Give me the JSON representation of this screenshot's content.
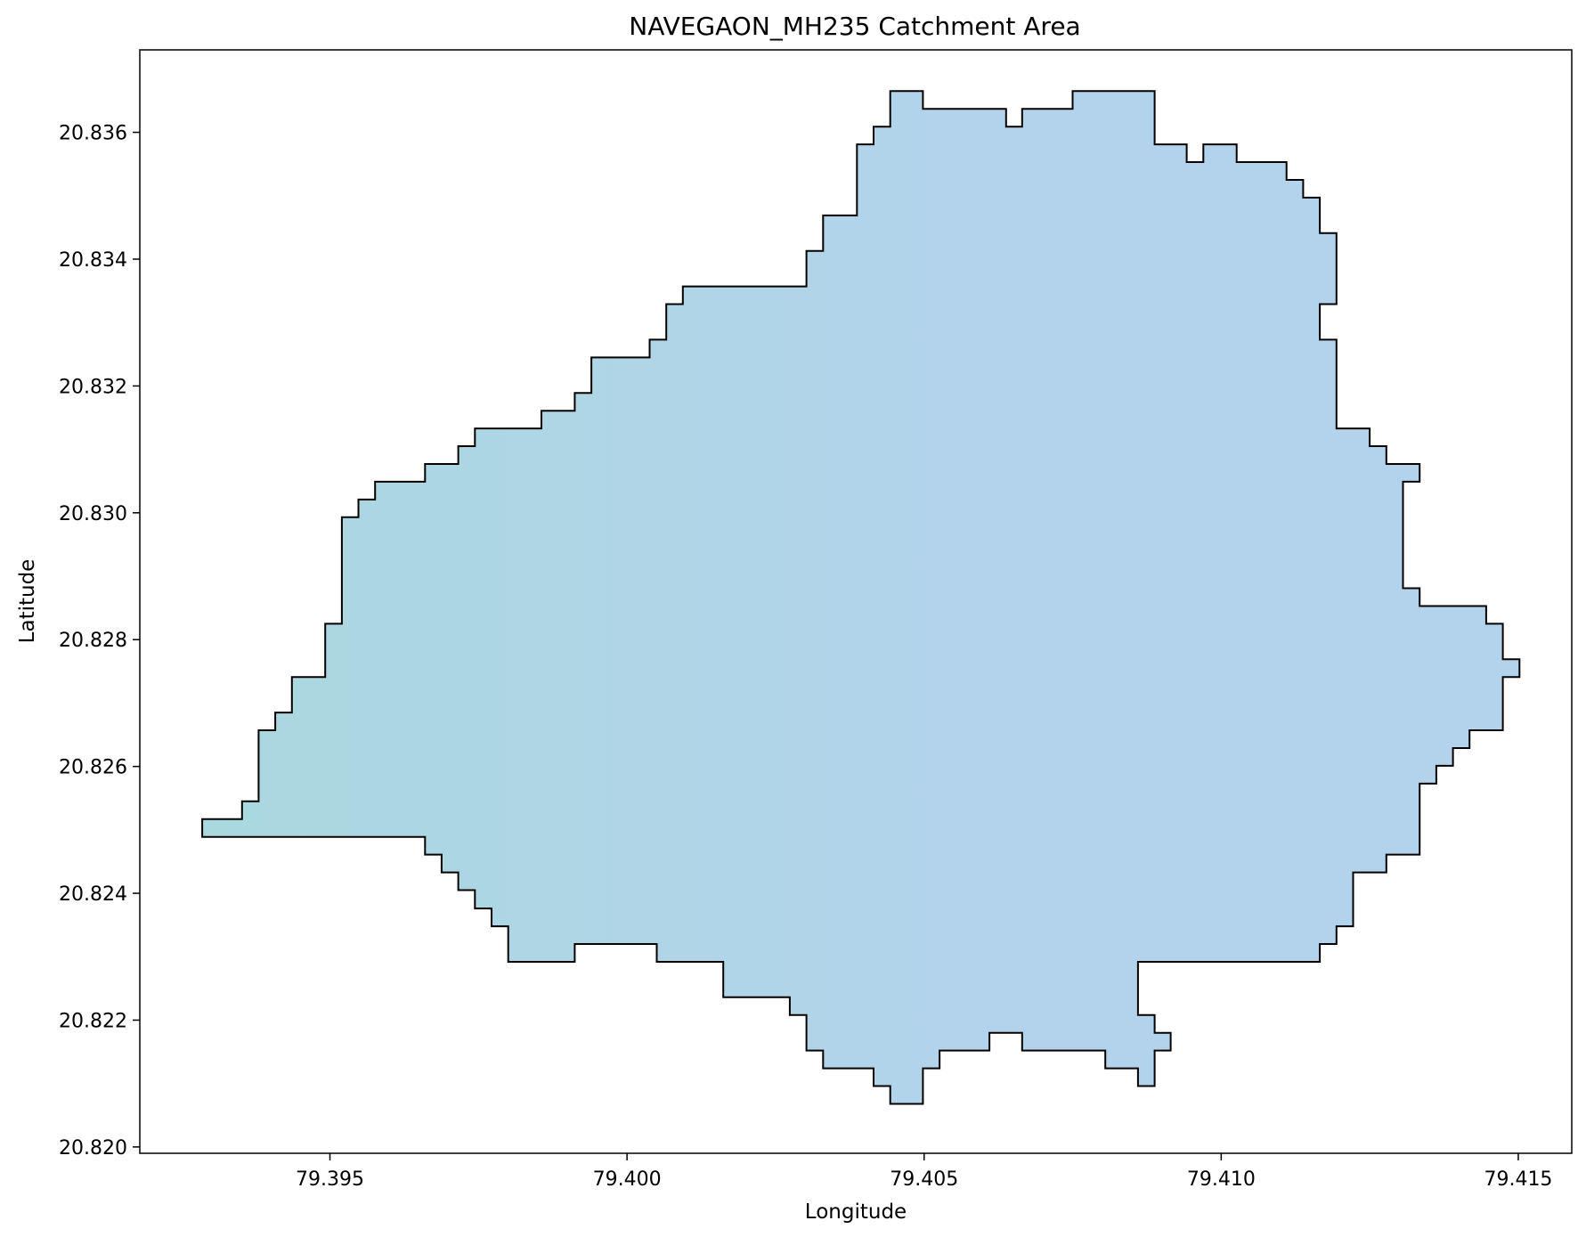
{
  "chart_data": {
    "type": "area",
    "title": "NAVEGAON_MH235 Catchment Area",
    "xlabel": "Longitude",
    "ylabel": "Latitude",
    "xlim": [
      79.3918,
      79.4159
    ],
    "ylim": [
      20.8199,
      20.8373
    ],
    "x_ticks": [
      "79.395",
      "79.400",
      "79.405",
      "79.410",
      "79.415"
    ],
    "x_tick_values": [
      79.395,
      79.4,
      79.405,
      79.41,
      79.415
    ],
    "y_ticks": [
      "20.820",
      "20.822",
      "20.824",
      "20.826",
      "20.828",
      "20.830",
      "20.832",
      "20.834",
      "20.836"
    ],
    "y_tick_values": [
      20.82,
      20.822,
      20.824,
      20.826,
      20.828,
      20.83,
      20.832,
      20.834,
      20.836
    ],
    "grid": false,
    "legend": "none",
    "fill_color_left": "#aad8df",
    "fill_color_right": "#b3d3ec",
    "edge_color": "#000000",
    "boundary": [
      [
        79.39285,
        20.82489
      ],
      [
        79.3966,
        20.82489
      ],
      [
        79.3966,
        20.82461
      ],
      [
        79.39688,
        20.82461
      ],
      [
        79.39688,
        20.82433
      ],
      [
        79.39716,
        20.82433
      ],
      [
        79.39716,
        20.82405
      ],
      [
        79.39744,
        20.82405
      ],
      [
        79.39744,
        20.82376
      ],
      [
        79.39772,
        20.82376
      ],
      [
        79.39772,
        20.82348
      ],
      [
        79.398,
        20.82348
      ],
      [
        79.398,
        20.82292
      ],
      [
        79.39912,
        20.82292
      ],
      [
        79.39912,
        20.8232
      ],
      [
        79.4005,
        20.8232
      ],
      [
        79.4005,
        20.82292
      ],
      [
        79.40162,
        20.82292
      ],
      [
        79.40162,
        20.82236
      ],
      [
        79.40274,
        20.82236
      ],
      [
        79.40274,
        20.82208
      ],
      [
        79.40302,
        20.82208
      ],
      [
        79.40302,
        20.82152
      ],
      [
        79.4033,
        20.82152
      ],
      [
        79.4033,
        20.82124
      ],
      [
        79.40415,
        20.82124
      ],
      [
        79.40415,
        20.82096
      ],
      [
        79.40443,
        20.82096
      ],
      [
        79.40443,
        20.82068
      ],
      [
        79.40498,
        20.82068
      ],
      [
        79.40498,
        20.82124
      ],
      [
        79.40526,
        20.82124
      ],
      [
        79.40526,
        20.82152
      ],
      [
        79.4061,
        20.82152
      ],
      [
        79.4061,
        20.8218
      ],
      [
        79.40665,
        20.8218
      ],
      [
        79.40665,
        20.82152
      ],
      [
        79.40805,
        20.82152
      ],
      [
        79.40805,
        20.82124
      ],
      [
        79.4086,
        20.82124
      ],
      [
        79.4086,
        20.82096
      ],
      [
        79.40888,
        20.82096
      ],
      [
        79.40888,
        20.82152
      ],
      [
        79.40915,
        20.82152
      ],
      [
        79.40915,
        20.8218
      ],
      [
        79.40888,
        20.8218
      ],
      [
        79.40888,
        20.82208
      ],
      [
        79.4086,
        20.82208
      ],
      [
        79.4086,
        20.82292
      ],
      [
        79.41166,
        20.82292
      ],
      [
        79.41166,
        20.8232
      ],
      [
        79.41194,
        20.8232
      ],
      [
        79.41194,
        20.82348
      ],
      [
        79.41222,
        20.82348
      ],
      [
        79.41222,
        20.82433
      ],
      [
        79.41278,
        20.82433
      ],
      [
        79.41278,
        20.82461
      ],
      [
        79.41334,
        20.82461
      ],
      [
        79.41334,
        20.82573
      ],
      [
        79.41362,
        20.82573
      ],
      [
        79.41362,
        20.82601
      ],
      [
        79.4139,
        20.82601
      ],
      [
        79.4139,
        20.82629
      ],
      [
        79.41418,
        20.82629
      ],
      [
        79.41418,
        20.82657
      ],
      [
        79.41474,
        20.82657
      ],
      [
        79.41474,
        20.82741
      ],
      [
        79.41502,
        20.82741
      ],
      [
        79.41502,
        20.82769
      ],
      [
        79.41474,
        20.82769
      ],
      [
        79.41474,
        20.82825
      ],
      [
        79.41446,
        20.82825
      ],
      [
        79.41446,
        20.82853
      ],
      [
        79.41334,
        20.82853
      ],
      [
        79.41334,
        20.82881
      ],
      [
        79.41306,
        20.82881
      ],
      [
        79.41306,
        20.83049
      ],
      [
        79.41334,
        20.83049
      ],
      [
        79.41334,
        20.83077
      ],
      [
        79.41278,
        20.83077
      ],
      [
        79.41278,
        20.83105
      ],
      [
        79.4125,
        20.83105
      ],
      [
        79.4125,
        20.83133
      ],
      [
        79.41194,
        20.83133
      ],
      [
        79.41194,
        20.83273
      ],
      [
        79.41166,
        20.83273
      ],
      [
        79.41166,
        20.83329
      ],
      [
        79.41194,
        20.83329
      ],
      [
        79.41194,
        20.83441
      ],
      [
        79.41166,
        20.83441
      ],
      [
        79.41166,
        20.83497
      ],
      [
        79.41138,
        20.83497
      ],
      [
        79.41138,
        20.83525
      ],
      [
        79.4111,
        20.83525
      ],
      [
        79.4111,
        20.83553
      ],
      [
        79.41026,
        20.83553
      ],
      [
        79.41026,
        20.83581
      ],
      [
        79.4097,
        20.83581
      ],
      [
        79.4097,
        20.83553
      ],
      [
        79.40942,
        20.83553
      ],
      [
        79.40942,
        20.83581
      ],
      [
        79.40888,
        20.83581
      ],
      [
        79.40888,
        20.83665
      ],
      [
        79.4075,
        20.83665
      ],
      [
        79.4075,
        20.83637
      ],
      [
        79.40665,
        20.83637
      ],
      [
        79.40665,
        20.83609
      ],
      [
        79.40638,
        20.83609
      ],
      [
        79.40638,
        20.83637
      ],
      [
        79.40498,
        20.83637
      ],
      [
        79.40498,
        20.83665
      ],
      [
        79.40443,
        20.83665
      ],
      [
        79.40443,
        20.83609
      ],
      [
        79.40415,
        20.83609
      ],
      [
        79.40415,
        20.83581
      ],
      [
        79.40387,
        20.83581
      ],
      [
        79.40387,
        20.83469
      ],
      [
        79.4033,
        20.83469
      ],
      [
        79.4033,
        20.83413
      ],
      [
        79.40302,
        20.83413
      ],
      [
        79.40302,
        20.83357
      ],
      [
        79.40094,
        20.83357
      ],
      [
        79.40094,
        20.83329
      ],
      [
        79.40066,
        20.83329
      ],
      [
        79.40066,
        20.83273
      ],
      [
        79.40038,
        20.83273
      ],
      [
        79.40038,
        20.83245
      ],
      [
        79.3994,
        20.83245
      ],
      [
        79.3994,
        20.83189
      ],
      [
        79.39912,
        20.83189
      ],
      [
        79.39912,
        20.83161
      ],
      [
        79.39856,
        20.83161
      ],
      [
        79.39856,
        20.83133
      ],
      [
        79.39744,
        20.83133
      ],
      [
        79.39744,
        20.83105
      ],
      [
        79.39716,
        20.83105
      ],
      [
        79.39716,
        20.83077
      ],
      [
        79.3966,
        20.83077
      ],
      [
        79.3966,
        20.83049
      ],
      [
        79.39576,
        20.83049
      ],
      [
        79.39576,
        20.83021
      ],
      [
        79.39548,
        20.83021
      ],
      [
        79.39548,
        20.82993
      ],
      [
        79.3952,
        20.82993
      ],
      [
        79.3952,
        20.82825
      ],
      [
        79.39492,
        20.82825
      ],
      [
        79.39492,
        20.82741
      ],
      [
        79.39436,
        20.82741
      ],
      [
        79.39436,
        20.82685
      ],
      [
        79.39408,
        20.82685
      ],
      [
        79.39408,
        20.82657
      ],
      [
        79.3938,
        20.82657
      ],
      [
        79.3938,
        20.82545
      ],
      [
        79.39352,
        20.82545
      ],
      [
        79.39352,
        20.82517
      ],
      [
        79.39285,
        20.82517
      ]
    ]
  }
}
